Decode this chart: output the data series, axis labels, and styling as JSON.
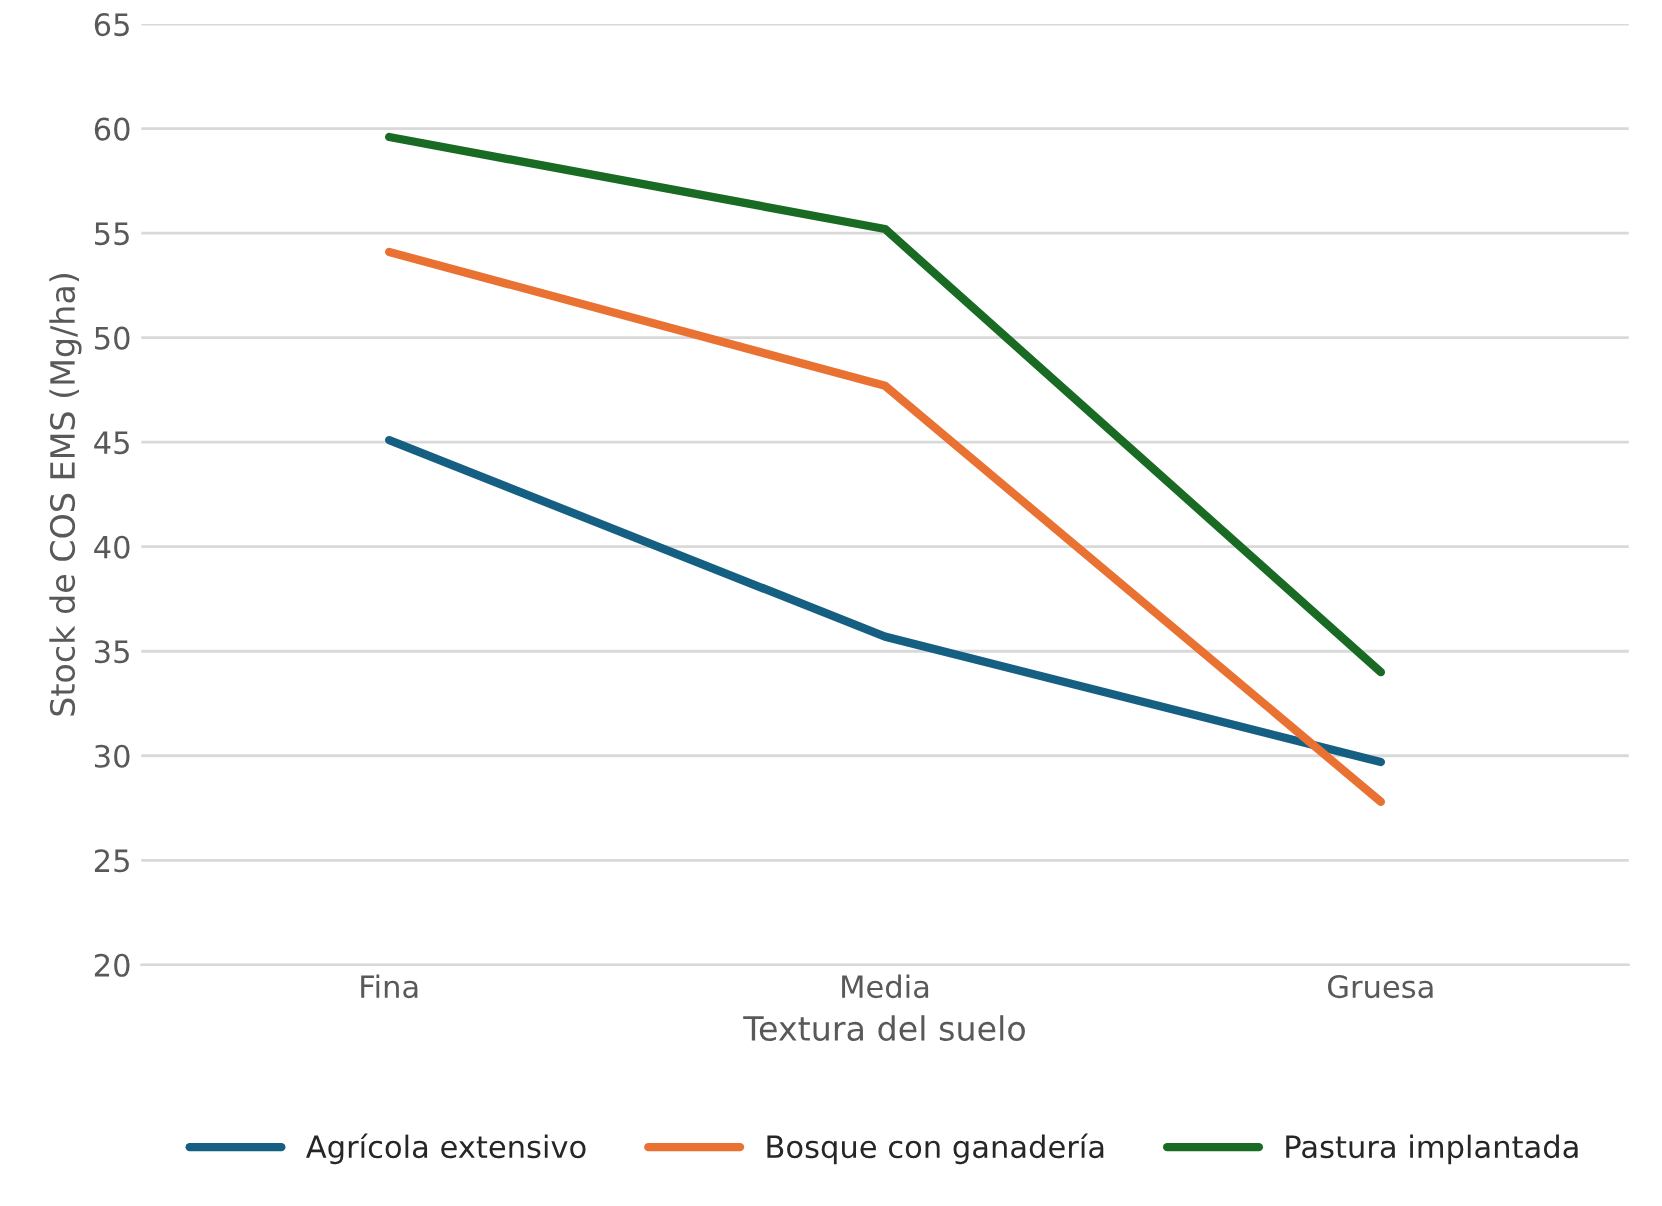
{
  "chart_data": {
    "type": "line",
    "xlabel": "Textura del suelo",
    "ylabel": "Stock de COS EMS (Mg/ha)",
    "categories": [
      "Fina",
      "Media",
      "Gruesa"
    ],
    "series": [
      {
        "name": "Agrícola extensivo",
        "color": "#156082",
        "values": [
          45.1,
          35.7,
          29.7
        ]
      },
      {
        "name": "Bosque con ganadería",
        "color": "#e97132",
        "values": [
          54.1,
          47.7,
          27.8
        ]
      },
      {
        "name": "Pastura implantada",
        "color": "#196b24",
        "values": [
          59.6,
          55.2,
          34.0
        ]
      }
    ],
    "ylim": [
      20,
      65
    ],
    "yticks": [
      20,
      25,
      30,
      35,
      40,
      45,
      50,
      55,
      60,
      65
    ],
    "grid": "y",
    "legend": "bottom",
    "marker": "none",
    "line_style": "solid"
  }
}
